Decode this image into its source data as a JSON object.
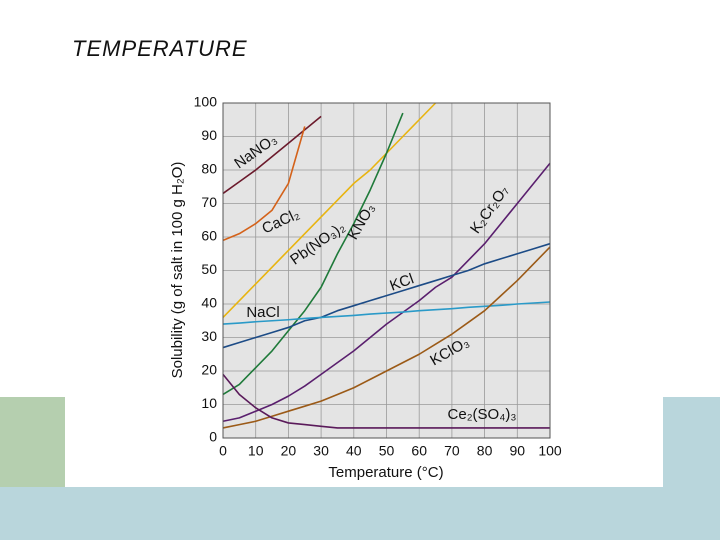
{
  "slide_title": "TEMPERATURE",
  "chart_data": {
    "type": "line",
    "x_label": "Temperature (°C)",
    "y_label": "Solubility (g of salt in 100 g H₂O)",
    "x": [
      0,
      5,
      10,
      15,
      20,
      25,
      30,
      35,
      40,
      45,
      50,
      55,
      60,
      65,
      70,
      75,
      80,
      85,
      90,
      95,
      100
    ],
    "xlim": [
      0,
      100
    ],
    "ylim": [
      0,
      100
    ],
    "xticks": [
      0,
      10,
      20,
      30,
      40,
      50,
      60,
      70,
      80,
      90,
      100
    ],
    "yticks": [
      0,
      10,
      20,
      30,
      40,
      50,
      60,
      70,
      80,
      90,
      100
    ],
    "grid": true,
    "series": [
      {
        "name": "NaNO₃",
        "color": "#6b1a2c",
        "values": [
          73,
          76.5,
          80,
          84,
          88,
          92,
          96,
          null,
          null,
          null,
          null,
          null,
          null,
          null,
          null,
          null,
          null,
          null,
          null,
          null,
          null
        ]
      },
      {
        "name": "CaCl₂",
        "color": "#d4621a",
        "values": [
          59,
          61,
          64,
          68,
          76,
          93,
          null,
          null,
          null,
          null,
          null,
          null,
          null,
          null,
          null,
          null,
          null,
          null,
          null,
          null,
          null
        ]
      },
      {
        "name": "Pb(NO₃)₂",
        "color": "#e8b410",
        "values": [
          36,
          41,
          46,
          51,
          56,
          61,
          66,
          71,
          76,
          80,
          85,
          90,
          95,
          100,
          null,
          null,
          null,
          null,
          null,
          null,
          null
        ]
      },
      {
        "name": "KNO₃",
        "color": "#1f7a3a",
        "values": [
          13,
          16,
          21,
          26,
          32,
          38,
          45,
          55,
          64,
          74,
          85,
          97,
          null,
          null,
          null,
          null,
          null,
          null,
          null,
          null,
          null
        ]
      },
      {
        "name": "K₂Cr₂O₇",
        "color": "#5a1f6e",
        "values": [
          5,
          6,
          8,
          10,
          12.5,
          15.5,
          19,
          22.5,
          26,
          30,
          34,
          37.5,
          41,
          45,
          48,
          53,
          58,
          64,
          70,
          76,
          82
        ]
      },
      {
        "name": "KCl",
        "color": "#1c4b86",
        "values": [
          27,
          28.5,
          30,
          31.5,
          33,
          35,
          36,
          38,
          39.5,
          41,
          42.5,
          44,
          45.5,
          47,
          48.5,
          50,
          52,
          53.5,
          55,
          56.5,
          58
        ]
      },
      {
        "name": "NaCl",
        "color": "#2a9ac8",
        "values": [
          34,
          34.3,
          34.7,
          35,
          35.3,
          35.7,
          36,
          36.3,
          36.6,
          37,
          37.3,
          37.6,
          38,
          38.3,
          38.6,
          39,
          39.3,
          39.6,
          40,
          40.3,
          40.6
        ]
      },
      {
        "name": "KClO₃",
        "color": "#9b5a17",
        "values": [
          3,
          4,
          5,
          6.5,
          8,
          9.5,
          11,
          13,
          15,
          17.5,
          20,
          22.5,
          25,
          28,
          31,
          34.5,
          38,
          42.5,
          47,
          52,
          57
        ]
      },
      {
        "name": "Ce₂(SO₄)₃",
        "color": "#5a1a5a",
        "values": [
          19,
          13,
          9,
          6,
          4.5,
          4,
          3.5,
          3,
          3,
          3,
          3,
          3,
          3,
          3,
          3,
          3,
          3,
          3,
          3,
          3,
          3
        ]
      }
    ]
  }
}
